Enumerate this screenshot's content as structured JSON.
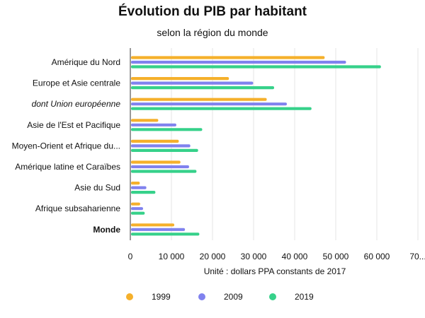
{
  "chart_data": {
    "type": "bar",
    "orientation": "horizontal",
    "title": "Évolution du PIB par habitant",
    "subtitle": "selon la région du monde",
    "xlabel": "Unité : dollars PPA constants de 2017",
    "ylabel": "",
    "xlim": [
      0,
      70000
    ],
    "x_ticks": [
      "0",
      "10 000",
      "20 000",
      "30 000",
      "40 000",
      "50 000",
      "60 000",
      "70..."
    ],
    "x_tick_values": [
      0,
      10000,
      20000,
      30000,
      40000,
      50000,
      60000,
      70000
    ],
    "grid": "vertical",
    "legend": "bottom",
    "categories": [
      {
        "label": "Amérique du Nord",
        "style": "normal"
      },
      {
        "label": "Europe et Asie centrale",
        "style": "normal"
      },
      {
        "label": "dont Union européenne",
        "style": "italic"
      },
      {
        "label": "Asie de l'Est et Pacifique",
        "style": "normal"
      },
      {
        "label": "Moyen-Orient et Afrique du...",
        "style": "normal"
      },
      {
        "label": "Amérique latine et Caraïbes",
        "style": "normal"
      },
      {
        "label": "Asie du Sud",
        "style": "normal"
      },
      {
        "label": "Afrique subsaharienne",
        "style": "normal"
      },
      {
        "label": "Monde",
        "style": "bold"
      }
    ],
    "series": [
      {
        "name": "1999",
        "color": "#f5b02b",
        "values": [
          47300,
          24000,
          33200,
          6800,
          11800,
          12200,
          2300,
          2400,
          10700
        ]
      },
      {
        "name": "2009",
        "color": "#8082ee",
        "values": [
          52500,
          29900,
          38100,
          11200,
          14600,
          14300,
          3900,
          3100,
          13300
        ]
      },
      {
        "name": "2019",
        "color": "#36d18a",
        "values": [
          61000,
          35000,
          44100,
          17500,
          16500,
          16100,
          6100,
          3500,
          16800
        ]
      }
    ]
  }
}
